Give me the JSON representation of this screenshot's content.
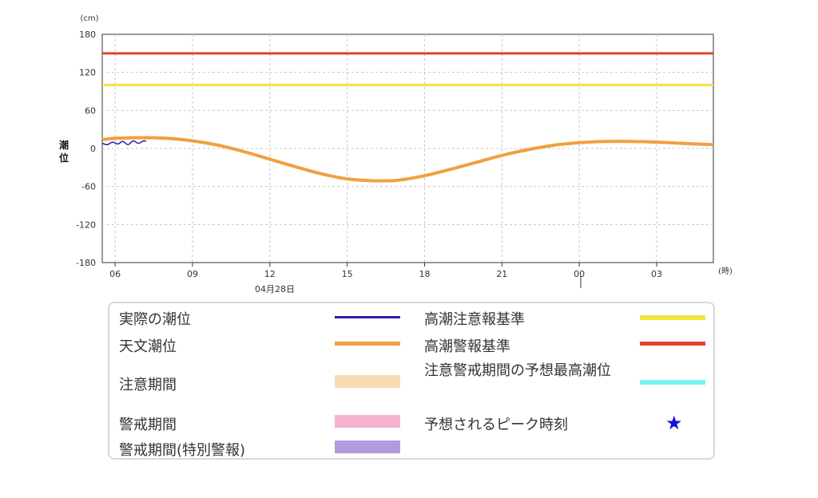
{
  "chart_data": {
    "type": "line",
    "y_unit": "(cm)",
    "x_unit": "(時)",
    "ylabel": "潮位",
    "ylim": [
      -180,
      180
    ],
    "y_ticks": [
      "180",
      "120",
      "60",
      "0",
      "-60",
      "-120",
      "-180"
    ],
    "x_ticks": [
      "06",
      "09",
      "12",
      "15",
      "18",
      "21",
      "00",
      "03"
    ],
    "date_label": "04月28日",
    "thresholds": [
      {
        "name": "高潮警報基準",
        "value": 150,
        "color": "#e0442b"
      },
      {
        "name": "高潮注意報基準",
        "value": 100,
        "color": "#f2e53b"
      }
    ],
    "series": [
      {
        "name": "天文潮位",
        "color": "#f0a040",
        "x_hours": [
          5.5,
          6,
          7,
          8,
          9,
          10,
          11,
          12,
          13,
          14,
          15,
          16,
          16.5,
          17,
          18,
          19,
          20,
          21,
          22,
          23,
          24,
          25,
          26,
          27,
          28,
          29.2
        ],
        "values": [
          14,
          16,
          17,
          16,
          12,
          5,
          -5,
          -17,
          -29,
          -40,
          -48,
          -51,
          -51,
          -50,
          -43,
          -33,
          -22,
          -11,
          -2,
          5,
          9,
          11,
          11,
          10,
          8,
          6
        ]
      },
      {
        "name": "実際の潮位",
        "color": "#2a1fa8",
        "x_hours": [
          5.5,
          5.7,
          5.9,
          6.1,
          6.3,
          6.5,
          6.7,
          6.9,
          7.1,
          7.2
        ],
        "values": [
          8,
          6,
          10,
          7,
          11,
          6,
          12,
          8,
          12,
          11
        ]
      }
    ]
  },
  "legend": {
    "actual": {
      "label": "実際の潮位",
      "color": "#2a1fa8"
    },
    "astro": {
      "label": "天文潮位",
      "color": "#f0a040"
    },
    "caution_period": {
      "label": "注意期間",
      "color": "#f7dcb4"
    },
    "warning_period": {
      "label": "警戒期間",
      "color": "#f2b3cc"
    },
    "special_period": {
      "label": "警戒期間(特別警報)",
      "color": "#b39adf"
    },
    "advisory_std": {
      "label": "高潮注意報基準",
      "color": "#f2e53b"
    },
    "warning_std": {
      "label": "高潮警報基準",
      "color": "#e0442b"
    },
    "max_forecast": {
      "label": "注意警戒期間の予想最高潮位",
      "color": "#7af2f2"
    },
    "peak_time": {
      "label": "予想されるピーク時刻",
      "icon": "star-icon",
      "color": "#1414d6"
    }
  }
}
